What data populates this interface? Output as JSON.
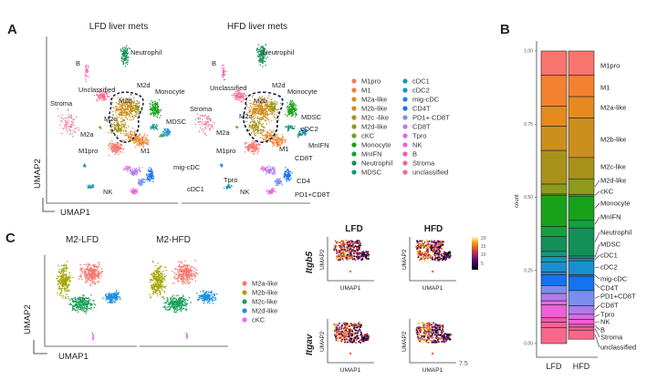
{
  "panel_a": {
    "letter": "A",
    "titles": [
      "LFD liver mets",
      "HFD liver mets"
    ],
    "xlabel": "UMAP1",
    "ylabel": "UMAP2",
    "lfd_labels": [
      "Neutrophil",
      "B",
      "Unclassified",
      "Stroma",
      "M2d",
      "Monocyte",
      "M2b",
      "M2c",
      "MDSC",
      "M2a",
      "M1pro",
      "M1",
      "NK"
    ],
    "hfd_labels": [
      "Neutrophil",
      "B",
      "Unclassified",
      "Stroma",
      "M2d",
      "Monocyte",
      "M2b",
      "M2c",
      "MDSC",
      "cDC2",
      "MnIFN",
      "M2a",
      "M1pro",
      "M1",
      "CD8T",
      "mig-cDC",
      "CD4",
      "Tpro",
      "cDC1",
      "NK",
      "PD1+CD8T"
    ],
    "legend": [
      {
        "label": "M1pro",
        "color": "#f8766d"
      },
      {
        "label": "M1",
        "color": "#f3812f"
      },
      {
        "label": "M2a-like",
        "color": "#e48a1e"
      },
      {
        "label": "M2b-like",
        "color": "#cc8e1d"
      },
      {
        "label": "M2c -like",
        "color": "#a8921a"
      },
      {
        "label": "M2d-like",
        "color": "#8e9a1c"
      },
      {
        "label": "cKC",
        "color": "#6aa61e"
      },
      {
        "label": "Monocyte",
        "color": "#18a21a"
      },
      {
        "label": "MnIFN",
        "color": "#14a040"
      },
      {
        "label": "Neutrophil",
        "color": "#139057"
      },
      {
        "label": "MDSC",
        "color": "#109a80"
      },
      {
        "label": "cDC1",
        "color": "#1397b0"
      },
      {
        "label": "cDC2",
        "color": "#1a8fd0"
      },
      {
        "label": "mig-cDC",
        "color": "#1f84e8"
      },
      {
        "label": "CD4T",
        "color": "#1473ee"
      },
      {
        "label": "PD1+ CD8T",
        "color": "#7b8ef0"
      },
      {
        "label": "CD8T",
        "color": "#b07cec"
      },
      {
        "label": "Tpro",
        "color": "#e06ae8"
      },
      {
        "label": "NK",
        "color": "#ee5fd8"
      },
      {
        "label": "B",
        "color": "#f25aa8"
      },
      {
        "label": "Stroma",
        "color": "#f46498"
      },
      {
        "label": "unclassified",
        "color": "#f6688a"
      }
    ]
  },
  "panel_b": {
    "letter": "B"
  },
  "chart_data": {
    "type": "bar",
    "stacked": true,
    "normalized": true,
    "ylabel": "count",
    "xlabel": "",
    "ylim": [
      0,
      1
    ],
    "yticks": [
      "0.00",
      "0.25",
      "0.50",
      "0.75",
      "1.00"
    ],
    "categories": [
      "LFD",
      "HFD"
    ],
    "segment_labels": [
      "M1pro",
      "M1",
      "M2a-like",
      "M2b-like",
      "M2c-like",
      "M2d-like",
      "cKC",
      "Monocyte",
      "MnIFN",
      "Neutrophil",
      "MDSC",
      "cDC1",
      "cDC2",
      "mig-cDC",
      "CD4T",
      "PD1+CD8T",
      "CD8T",
      "Tpro",
      "NK",
      "B",
      "Stroma",
      "unclassified"
    ],
    "series": [
      {
        "name": "M1pro",
        "color": "#f8766d",
        "values": [
          0.083,
          0.083
        ]
      },
      {
        "name": "M1",
        "color": "#f3812f",
        "values": [
          0.106,
          0.073
        ]
      },
      {
        "name": "M2a-like",
        "color": "#e48a1e",
        "values": [
          0.068,
          0.073
        ]
      },
      {
        "name": "M2b-like",
        "color": "#cc8e1d",
        "values": [
          0.083,
          0.135
        ]
      },
      {
        "name": "M2c-like",
        "color": "#a8921a",
        "values": [
          0.115,
          0.073
        ]
      },
      {
        "name": "M2d-like",
        "color": "#8e9a1c",
        "values": [
          0.034,
          0.054
        ]
      },
      {
        "name": "cKC",
        "color": "#6aa61e",
        "values": [
          0.004,
          0.005
        ]
      },
      {
        "name": "Monocyte",
        "color": "#18a21a",
        "values": [
          0.107,
          0.083
        ]
      },
      {
        "name": "MnIFN",
        "color": "#14a040",
        "values": [
          0.034,
          0.026
        ]
      },
      {
        "name": "Neutrophil",
        "color": "#139057",
        "values": [
          0.051,
          0.096
        ]
      },
      {
        "name": "MDSC",
        "color": "#109a80",
        "values": [
          0.018,
          0.008
        ]
      },
      {
        "name": "cDC1",
        "color": "#1397b0",
        "values": [
          0.018,
          0.008
        ]
      },
      {
        "name": "cDC2",
        "color": "#1a8fd0",
        "values": [
          0.035,
          0.048
        ]
      },
      {
        "name": "mig-cDC",
        "color": "#1f84e8",
        "values": [
          0.009,
          0.005
        ]
      },
      {
        "name": "CD4T",
        "color": "#1473ee",
        "values": [
          0.037,
          0.049
        ]
      },
      {
        "name": "PD1+CD8T",
        "color": "#7b8ef0",
        "values": [
          0.027,
          0.052
        ]
      },
      {
        "name": "CD8T",
        "color": "#b07cec",
        "values": [
          0.025,
          0.029
        ]
      },
      {
        "name": "Tpro",
        "color": "#e06ae8",
        "values": [
          0.014,
          0.018
        ]
      },
      {
        "name": "NK",
        "color": "#ee5fd8",
        "values": [
          0.044,
          0.016
        ]
      },
      {
        "name": "B",
        "color": "#f25aa8",
        "values": [
          0.015,
          0.01
        ]
      },
      {
        "name": "Stroma",
        "color": "#f46498",
        "values": [
          0.018,
          0.01
        ]
      },
      {
        "name": "unclassified",
        "color": "#f6688a",
        "values": [
          0.055,
          0.031
        ]
      }
    ]
  },
  "panel_c": {
    "letter": "C",
    "titles": [
      "M2-LFD",
      "M2-HFD"
    ],
    "xlabel": "UMAP1",
    "ylabel": "UMAP2",
    "legend": [
      {
        "label": "M2a-like",
        "color": "#f8766d"
      },
      {
        "label": "M2b-like",
        "color": "#a3a500"
      },
      {
        "label": "M2c-like",
        "color": "#1b9e5a"
      },
      {
        "label": "M2d-like",
        "color": "#1a8fe3"
      },
      {
        "label": "cKC",
        "color": "#e76bf3"
      }
    ],
    "feature_columns": [
      "LFD",
      "HFD"
    ],
    "genes": [
      "Itgb5",
      "Itgav"
    ],
    "feature_xlabel": "UMAP1",
    "feature_ylabel": "UMAP2",
    "colorbar_ticks": [
      "20",
      "15",
      "10",
      "5"
    ],
    "corner_value": "7.5"
  }
}
